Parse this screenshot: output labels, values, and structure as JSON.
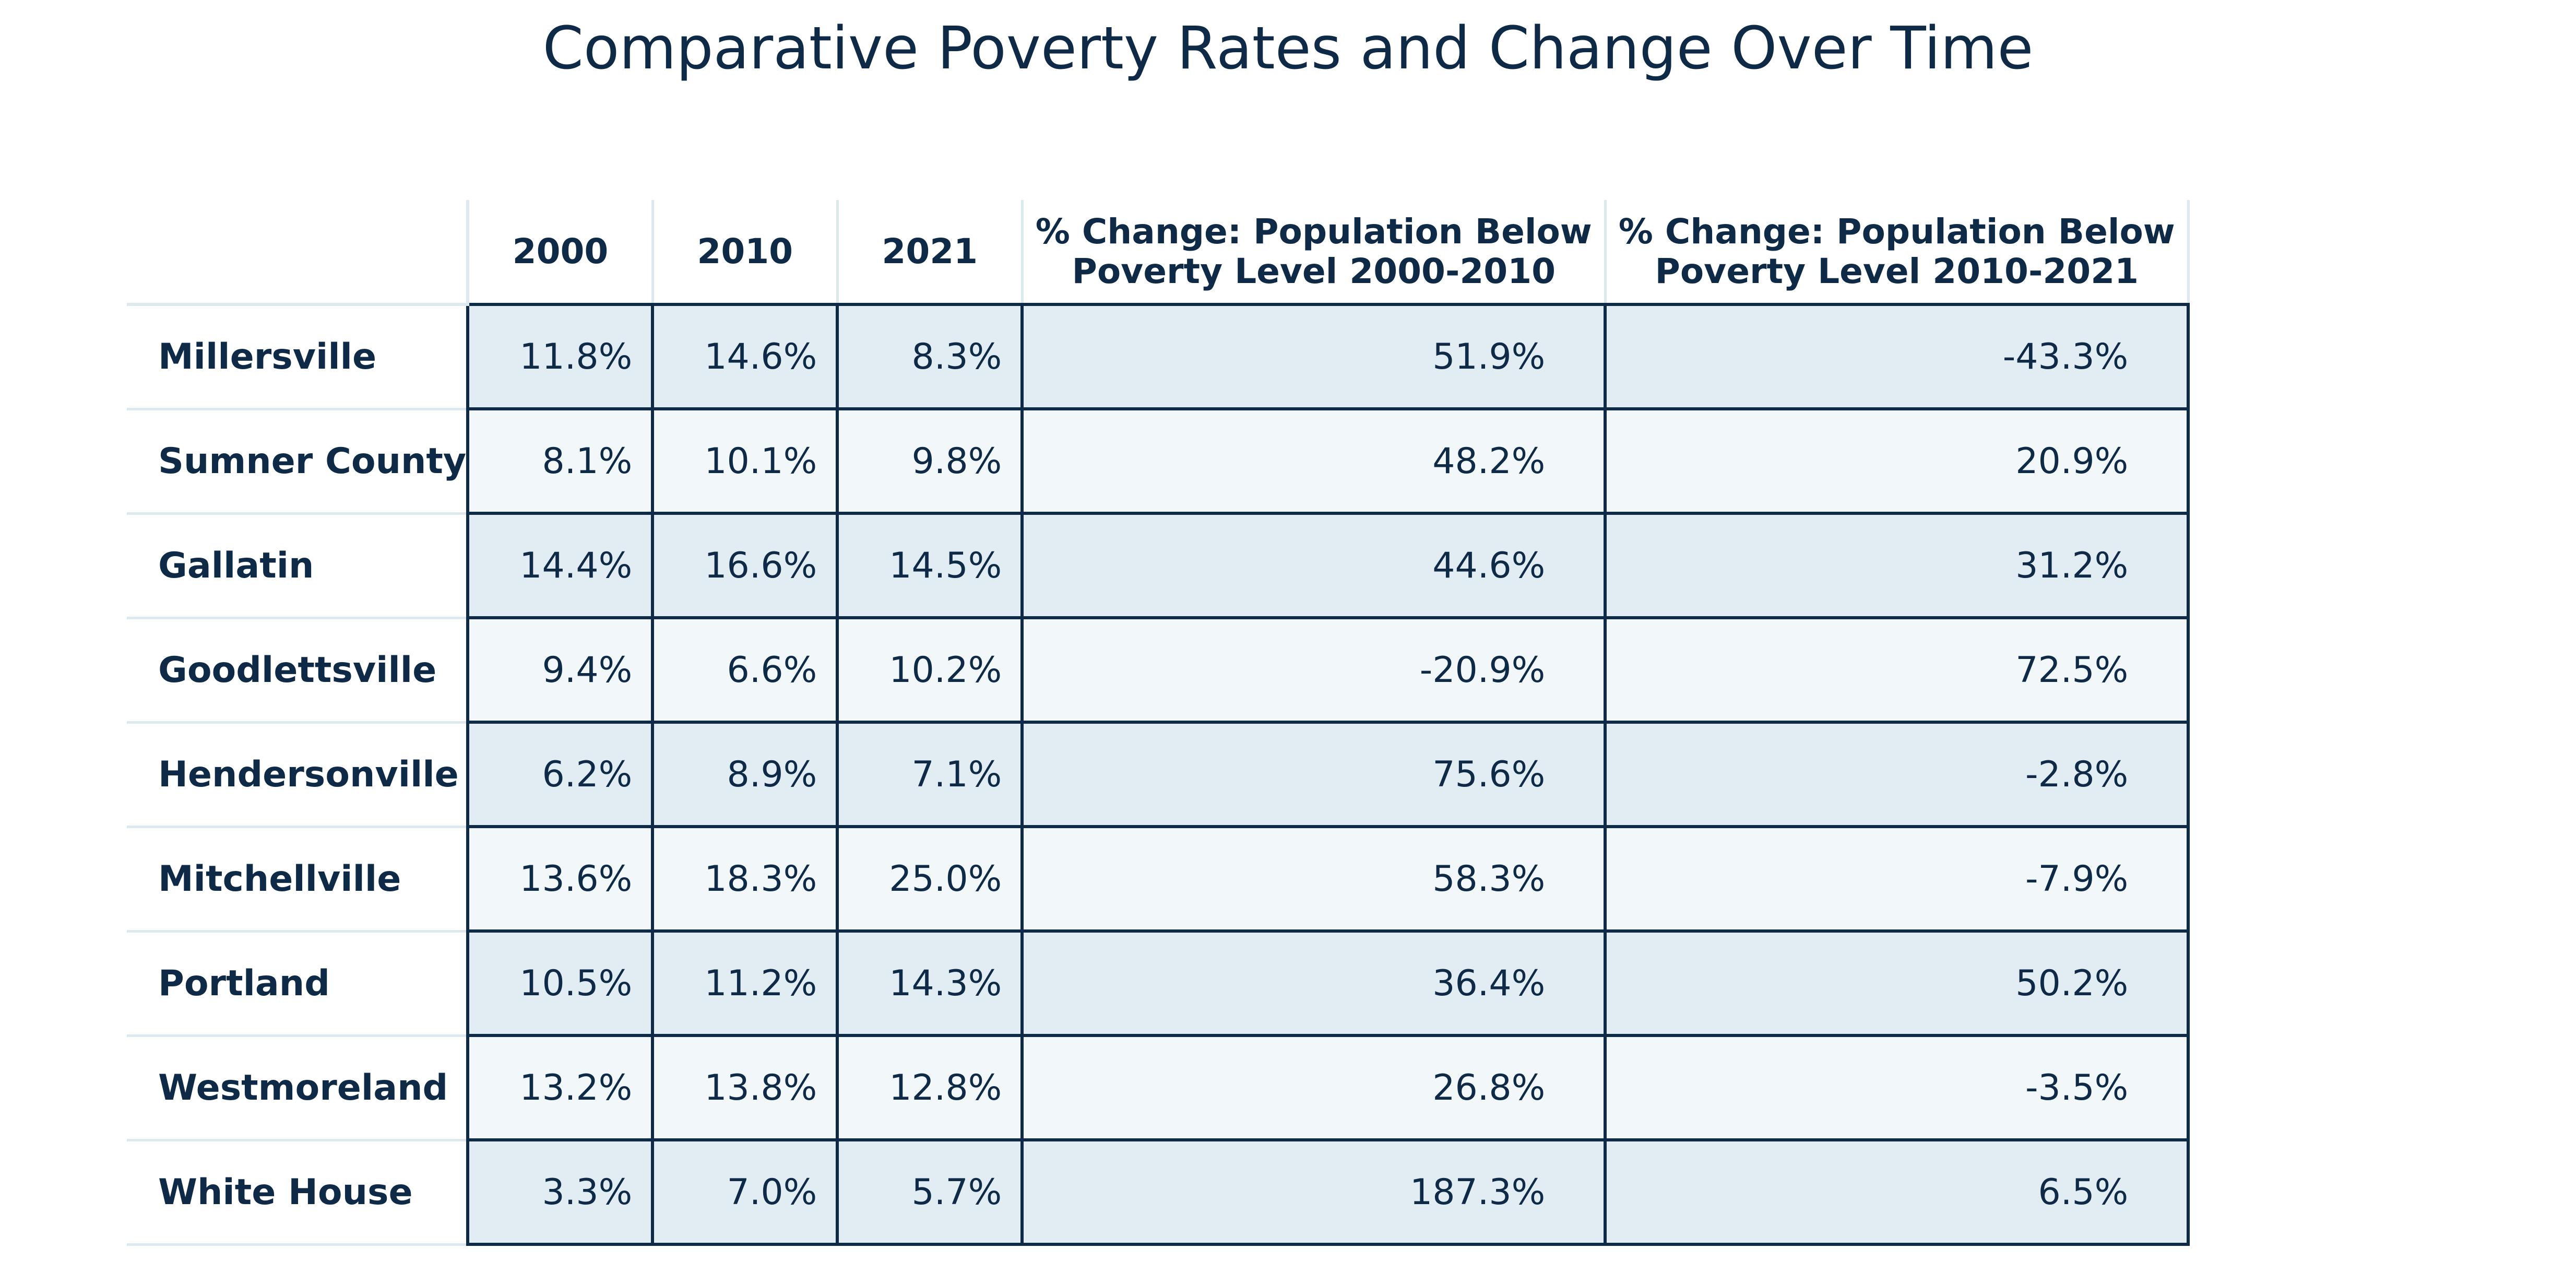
{
  "chart_data": {
    "type": "table",
    "title": "Comparative Poverty Rates and Change Over Time",
    "columns": [
      "2000",
      "2010",
      "2021",
      "% Change: Population Below Poverty Level 2000-2010",
      "% Change: Population Below Poverty Level 2010-2021"
    ],
    "rows": [
      {
        "label": "Millersville",
        "values": [
          "11.8%",
          "14.6%",
          "8.3%",
          "51.9%",
          "-43.3%"
        ]
      },
      {
        "label": "Sumner County",
        "values": [
          "8.1%",
          "10.1%",
          "9.8%",
          "48.2%",
          "20.9%"
        ]
      },
      {
        "label": "Gallatin",
        "values": [
          "14.4%",
          "16.6%",
          "14.5%",
          "44.6%",
          "31.2%"
        ]
      },
      {
        "label": "Goodlettsville",
        "values": [
          "9.4%",
          "6.6%",
          "10.2%",
          "-20.9%",
          "72.5%"
        ]
      },
      {
        "label": "Hendersonville",
        "values": [
          "6.2%",
          "8.9%",
          "7.1%",
          "75.6%",
          "-2.8%"
        ]
      },
      {
        "label": "Mitchellville",
        "values": [
          "13.6%",
          "18.3%",
          "25.0%",
          "58.3%",
          "-7.9%"
        ]
      },
      {
        "label": "Portland",
        "values": [
          "10.5%",
          "11.2%",
          "14.3%",
          "36.4%",
          "50.2%"
        ]
      },
      {
        "label": "Westmoreland",
        "values": [
          "13.2%",
          "13.8%",
          "12.8%",
          "26.8%",
          "-3.5%"
        ]
      },
      {
        "label": "White House",
        "values": [
          "3.3%",
          "7.0%",
          "5.7%",
          "187.3%",
          "6.5%"
        ]
      }
    ]
  },
  "colors": {
    "text": "#0e2a47",
    "border_dark": "#0e2a47",
    "border_light": "#dce9ee",
    "row_fill_odd": "#e1edf2",
    "row_fill_even": "#f2f8f9"
  }
}
